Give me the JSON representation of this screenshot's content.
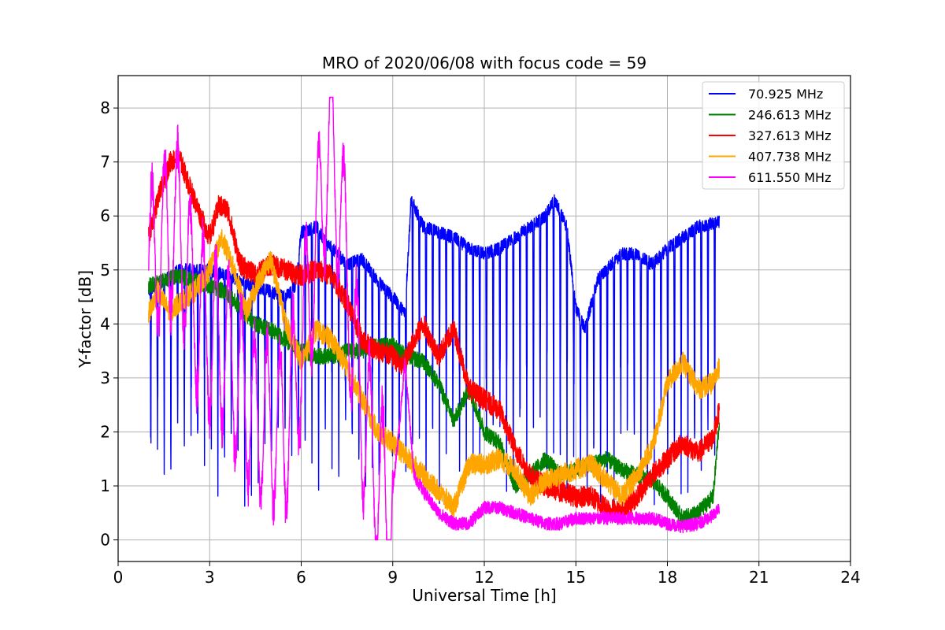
{
  "chart_data": {
    "type": "line",
    "title": "MRO of 2020/06/08 with focus code = 59",
    "xlabel": "Universal Time [h]",
    "ylabel": "Y-factor [dB]",
    "xlim": [
      0,
      24
    ],
    "ylim": [
      -0.4,
      8.6
    ],
    "xticks": [
      0,
      3,
      6,
      9,
      12,
      15,
      18,
      21,
      24
    ],
    "yticks": [
      0,
      1,
      2,
      3,
      4,
      5,
      6,
      7,
      8
    ],
    "grid": true,
    "legend_position": "top-right",
    "series": [
      {
        "name": " 70.925 MHz",
        "color": "#0000ff",
        "noise": 0.12,
        "dips": {
          "start": 1.05,
          "period": 0.22,
          "width": 0.04,
          "min": 0.6
        },
        "points": [
          [
            1.0,
            4.6
          ],
          [
            1.5,
            4.8
          ],
          [
            2.0,
            5.0
          ],
          [
            2.5,
            5.0
          ],
          [
            3.0,
            5.0
          ],
          [
            3.5,
            4.9
          ],
          [
            4.0,
            4.8
          ],
          [
            4.5,
            4.7
          ],
          [
            5.0,
            4.6
          ],
          [
            5.5,
            4.5
          ],
          [
            5.8,
            4.7
          ],
          [
            6.0,
            5.7
          ],
          [
            6.5,
            5.8
          ],
          [
            6.8,
            5.5
          ],
          [
            7.0,
            5.4
          ],
          [
            7.5,
            5.1
          ],
          [
            8.0,
            5.2
          ],
          [
            8.5,
            4.8
          ],
          [
            9.0,
            4.5
          ],
          [
            9.4,
            4.2
          ],
          [
            9.6,
            6.3
          ],
          [
            10.0,
            5.8
          ],
          [
            10.5,
            5.7
          ],
          [
            11.0,
            5.6
          ],
          [
            11.5,
            5.4
          ],
          [
            12.0,
            5.3
          ],
          [
            12.5,
            5.4
          ],
          [
            13.0,
            5.6
          ],
          [
            13.5,
            5.8
          ],
          [
            14.0,
            6.0
          ],
          [
            14.3,
            6.3
          ],
          [
            14.7,
            5.8
          ],
          [
            15.0,
            4.3
          ],
          [
            15.3,
            3.9
          ],
          [
            15.7,
            4.8
          ],
          [
            16.0,
            5.0
          ],
          [
            16.5,
            5.3
          ],
          [
            17.0,
            5.3
          ],
          [
            17.5,
            5.1
          ],
          [
            18.0,
            5.4
          ],
          [
            18.5,
            5.6
          ],
          [
            19.0,
            5.8
          ],
          [
            19.7,
            5.9
          ]
        ]
      },
      {
        "name": "246.613 MHz",
        "color": "#008000",
        "noise": 0.15,
        "points": [
          [
            1.0,
            4.7
          ],
          [
            1.5,
            4.8
          ],
          [
            2.0,
            4.9
          ],
          [
            2.5,
            4.8
          ],
          [
            3.0,
            4.7
          ],
          [
            3.5,
            4.6
          ],
          [
            4.0,
            4.3
          ],
          [
            4.5,
            4.0
          ],
          [
            5.0,
            3.9
          ],
          [
            5.5,
            3.7
          ],
          [
            6.0,
            3.5
          ],
          [
            6.5,
            3.4
          ],
          [
            7.0,
            3.4
          ],
          [
            7.5,
            3.5
          ],
          [
            8.0,
            3.5
          ],
          [
            8.5,
            3.6
          ],
          [
            9.0,
            3.6
          ],
          [
            9.5,
            3.4
          ],
          [
            10.0,
            3.3
          ],
          [
            10.5,
            2.9
          ],
          [
            11.0,
            2.2
          ],
          [
            11.5,
            2.8
          ],
          [
            12.0,
            2.0
          ],
          [
            12.5,
            1.8
          ],
          [
            13.0,
            1.0
          ],
          [
            13.5,
            1.2
          ],
          [
            14.0,
            1.5
          ],
          [
            14.5,
            1.2
          ],
          [
            15.0,
            1.3
          ],
          [
            15.5,
            1.4
          ],
          [
            16.0,
            1.5
          ],
          [
            16.5,
            1.3
          ],
          [
            17.0,
            1.2
          ],
          [
            17.5,
            1.1
          ],
          [
            18.0,
            0.8
          ],
          [
            18.5,
            0.4
          ],
          [
            19.0,
            0.5
          ],
          [
            19.5,
            0.8
          ],
          [
            19.7,
            2.2
          ]
        ]
      },
      {
        "name": "327.613 MHz",
        "color": "#ff0000",
        "noise": 0.2,
        "points": [
          [
            1.0,
            5.6
          ],
          [
            1.3,
            6.3
          ],
          [
            1.7,
            7.0
          ],
          [
            2.0,
            7.1
          ],
          [
            2.3,
            6.6
          ],
          [
            2.7,
            6.0
          ],
          [
            3.0,
            5.6
          ],
          [
            3.3,
            6.2
          ],
          [
            3.6,
            6.1
          ],
          [
            4.0,
            5.1
          ],
          [
            4.5,
            4.9
          ],
          [
            5.0,
            5.1
          ],
          [
            5.5,
            5.0
          ],
          [
            6.0,
            4.9
          ],
          [
            6.5,
            5.0
          ],
          [
            7.0,
            4.9
          ],
          [
            7.5,
            4.4
          ],
          [
            8.0,
            3.7
          ],
          [
            8.5,
            3.5
          ],
          [
            9.0,
            3.4
          ],
          [
            9.3,
            3.2
          ],
          [
            9.7,
            3.7
          ],
          [
            10.0,
            4.0
          ],
          [
            10.5,
            3.4
          ],
          [
            11.0,
            3.9
          ],
          [
            11.5,
            2.8
          ],
          [
            12.0,
            2.6
          ],
          [
            12.5,
            2.4
          ],
          [
            13.0,
            1.7
          ],
          [
            13.5,
            1.2
          ],
          [
            14.0,
            1.0
          ],
          [
            14.5,
            0.9
          ],
          [
            15.0,
            0.8
          ],
          [
            15.5,
            0.8
          ],
          [
            16.0,
            0.6
          ],
          [
            16.5,
            0.5
          ],
          [
            17.0,
            0.8
          ],
          [
            17.5,
            1.2
          ],
          [
            18.0,
            1.5
          ],
          [
            18.5,
            1.8
          ],
          [
            19.0,
            1.6
          ],
          [
            19.5,
            1.9
          ],
          [
            19.7,
            2.4
          ]
        ]
      },
      {
        "name": "407.738 MHz",
        "color": "#ffa500",
        "noise": 0.2,
        "points": [
          [
            1.0,
            4.2
          ],
          [
            1.3,
            4.6
          ],
          [
            1.7,
            4.2
          ],
          [
            2.0,
            4.4
          ],
          [
            2.5,
            4.6
          ],
          [
            3.0,
            5.0
          ],
          [
            3.4,
            5.6
          ],
          [
            3.8,
            5.0
          ],
          [
            4.2,
            4.2
          ],
          [
            4.6,
            4.8
          ],
          [
            5.0,
            5.2
          ],
          [
            5.5,
            4.0
          ],
          [
            6.0,
            3.3
          ],
          [
            6.5,
            3.9
          ],
          [
            7.0,
            3.7
          ],
          [
            7.5,
            3.2
          ],
          [
            8.0,
            2.6
          ],
          [
            8.5,
            2.0
          ],
          [
            9.0,
            1.8
          ],
          [
            9.5,
            1.5
          ],
          [
            10.0,
            1.2
          ],
          [
            10.5,
            0.9
          ],
          [
            11.0,
            0.6
          ],
          [
            11.5,
            1.4
          ],
          [
            12.0,
            1.4
          ],
          [
            12.5,
            1.5
          ],
          [
            13.0,
            1.3
          ],
          [
            13.5,
            0.8
          ],
          [
            14.0,
            1.1
          ],
          [
            14.5,
            1.2
          ],
          [
            15.0,
            1.3
          ],
          [
            15.5,
            1.4
          ],
          [
            16.0,
            1.1
          ],
          [
            16.5,
            0.8
          ],
          [
            17.0,
            1.2
          ],
          [
            17.5,
            1.7
          ],
          [
            18.0,
            2.9
          ],
          [
            18.5,
            3.3
          ],
          [
            19.0,
            2.8
          ],
          [
            19.5,
            2.9
          ],
          [
            19.7,
            3.2
          ]
        ]
      },
      {
        "name": "611.550 MHz",
        "color": "#ff00ff",
        "noise": 0.12,
        "oscillation": {
          "amplitude": 1.9,
          "period": 0.42,
          "until": 9.0
        },
        "points": [
          [
            1.0,
            5.0
          ],
          [
            1.5,
            5.6
          ],
          [
            2.0,
            5.8
          ],
          [
            2.5,
            4.3
          ],
          [
            3.0,
            3.8
          ],
          [
            3.5,
            3.6
          ],
          [
            4.0,
            2.8
          ],
          [
            4.5,
            2.3
          ],
          [
            5.0,
            2.1
          ],
          [
            5.5,
            2.0
          ],
          [
            6.0,
            3.5
          ],
          [
            6.5,
            5.5
          ],
          [
            6.8,
            6.9
          ],
          [
            7.0,
            7.1
          ],
          [
            7.3,
            6.2
          ],
          [
            7.6,
            4.2
          ],
          [
            8.0,
            2.4
          ],
          [
            8.5,
            1.2
          ],
          [
            8.9,
            0.4
          ],
          [
            9.2,
            2.0
          ],
          [
            9.4,
            3.3
          ],
          [
            9.7,
            1.2
          ],
          [
            10.0,
            0.9
          ],
          [
            10.5,
            0.5
          ],
          [
            11.0,
            0.3
          ],
          [
            11.5,
            0.3
          ],
          [
            12.0,
            0.6
          ],
          [
            12.5,
            0.6
          ],
          [
            13.0,
            0.5
          ],
          [
            13.5,
            0.4
          ],
          [
            14.0,
            0.3
          ],
          [
            14.5,
            0.3
          ],
          [
            15.0,
            0.4
          ],
          [
            15.5,
            0.4
          ],
          [
            16.0,
            0.4
          ],
          [
            16.5,
            0.4
          ],
          [
            17.0,
            0.4
          ],
          [
            17.5,
            0.4
          ],
          [
            18.0,
            0.3
          ],
          [
            18.5,
            0.25
          ],
          [
            19.0,
            0.3
          ],
          [
            19.5,
            0.45
          ],
          [
            19.7,
            0.6
          ]
        ]
      }
    ]
  }
}
